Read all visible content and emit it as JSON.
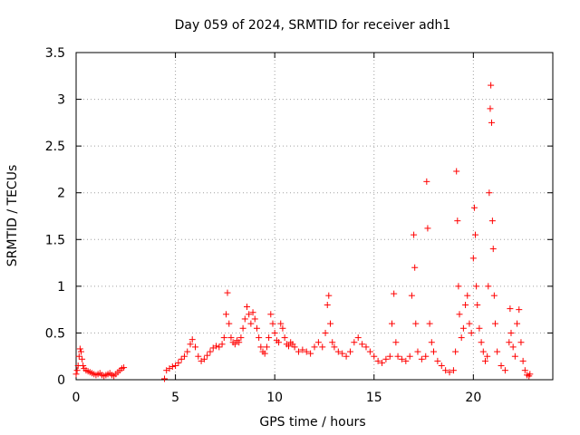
{
  "chart_data": {
    "type": "scatter",
    "title": "Day 059 of 2024, SRMTID for receiver adh1",
    "xlabel": "GPS time / hours",
    "ylabel": "SRMTID / TECUs",
    "xlim": [
      0,
      24
    ],
    "ylim": [
      0,
      3.5
    ],
    "x_ticks": [
      0,
      5,
      10,
      15,
      20
    ],
    "x_tick_labels": [
      "0",
      "5",
      "10",
      "15",
      "20"
    ],
    "y_ticks": [
      0,
      0.5,
      1,
      1.5,
      2,
      2.5,
      3,
      3.5
    ],
    "y_tick_labels": [
      "0",
      "0.5",
      "1",
      "1.5",
      "2",
      "2.5",
      "3",
      "3.5"
    ],
    "grid": true,
    "marker": "plus",
    "color": "#ff0000",
    "series": [
      {
        "name": "SRMTID",
        "points": [
          [
            0.0,
            0.06
          ],
          [
            0.05,
            0.1
          ],
          [
            0.1,
            0.15
          ],
          [
            0.15,
            0.25
          ],
          [
            0.2,
            0.33
          ],
          [
            0.25,
            0.3
          ],
          [
            0.3,
            0.22
          ],
          [
            0.35,
            0.15
          ],
          [
            0.4,
            0.12
          ],
          [
            0.5,
            0.1
          ],
          [
            0.6,
            0.09
          ],
          [
            0.7,
            0.08
          ],
          [
            0.8,
            0.07
          ],
          [
            0.9,
            0.06
          ],
          [
            1.0,
            0.05
          ],
          [
            1.1,
            0.06
          ],
          [
            1.2,
            0.07
          ],
          [
            1.3,
            0.05
          ],
          [
            1.4,
            0.04
          ],
          [
            1.5,
            0.05
          ],
          [
            1.6,
            0.06
          ],
          [
            1.7,
            0.07
          ],
          [
            1.8,
            0.05
          ],
          [
            1.9,
            0.04
          ],
          [
            2.0,
            0.06
          ],
          [
            2.1,
            0.08
          ],
          [
            2.2,
            0.1
          ],
          [
            2.3,
            0.12
          ],
          [
            2.4,
            0.13
          ],
          [
            4.45,
            0.01
          ],
          [
            4.55,
            0.1
          ],
          [
            4.7,
            0.12
          ],
          [
            4.85,
            0.14
          ],
          [
            5.0,
            0.15
          ],
          [
            5.15,
            0.18
          ],
          [
            5.3,
            0.22
          ],
          [
            5.45,
            0.25
          ],
          [
            5.6,
            0.3
          ],
          [
            5.75,
            0.38
          ],
          [
            5.85,
            0.43
          ],
          [
            6.0,
            0.35
          ],
          [
            6.15,
            0.25
          ],
          [
            6.3,
            0.2
          ],
          [
            6.45,
            0.22
          ],
          [
            6.6,
            0.26
          ],
          [
            6.75,
            0.3
          ],
          [
            6.9,
            0.34
          ],
          [
            7.05,
            0.36
          ],
          [
            7.2,
            0.35
          ],
          [
            7.35,
            0.38
          ],
          [
            7.45,
            0.45
          ],
          [
            7.55,
            0.7
          ],
          [
            7.62,
            0.93
          ],
          [
            7.7,
            0.6
          ],
          [
            7.8,
            0.45
          ],
          [
            7.9,
            0.4
          ],
          [
            8.0,
            0.38
          ],
          [
            8.1,
            0.42
          ],
          [
            8.2,
            0.4
          ],
          [
            8.3,
            0.45
          ],
          [
            8.4,
            0.55
          ],
          [
            8.5,
            0.65
          ],
          [
            8.6,
            0.78
          ],
          [
            8.7,
            0.7
          ],
          [
            8.8,
            0.6
          ],
          [
            8.9,
            0.72
          ],
          [
            9.0,
            0.65
          ],
          [
            9.1,
            0.55
          ],
          [
            9.2,
            0.45
          ],
          [
            9.3,
            0.35
          ],
          [
            9.4,
            0.3
          ],
          [
            9.5,
            0.28
          ],
          [
            9.6,
            0.35
          ],
          [
            9.7,
            0.45
          ],
          [
            9.8,
            0.7
          ],
          [
            9.9,
            0.6
          ],
          [
            10.0,
            0.5
          ],
          [
            10.1,
            0.42
          ],
          [
            10.2,
            0.4
          ],
          [
            10.3,
            0.6
          ],
          [
            10.4,
            0.55
          ],
          [
            10.5,
            0.45
          ],
          [
            10.6,
            0.38
          ],
          [
            10.7,
            0.36
          ],
          [
            10.8,
            0.4
          ],
          [
            10.9,
            0.38
          ],
          [
            11.0,
            0.35
          ],
          [
            11.2,
            0.3
          ],
          [
            11.4,
            0.32
          ],
          [
            11.6,
            0.3
          ],
          [
            11.8,
            0.28
          ],
          [
            12.0,
            0.35
          ],
          [
            12.2,
            0.4
          ],
          [
            12.4,
            0.35
          ],
          [
            12.55,
            0.5
          ],
          [
            12.65,
            0.8
          ],
          [
            12.72,
            0.9
          ],
          [
            12.8,
            0.6
          ],
          [
            12.9,
            0.4
          ],
          [
            13.0,
            0.35
          ],
          [
            13.2,
            0.3
          ],
          [
            13.4,
            0.28
          ],
          [
            13.6,
            0.25
          ],
          [
            13.8,
            0.3
          ],
          [
            14.0,
            0.4
          ],
          [
            14.2,
            0.45
          ],
          [
            14.4,
            0.38
          ],
          [
            14.6,
            0.35
          ],
          [
            14.8,
            0.3
          ],
          [
            15.0,
            0.25
          ],
          [
            15.2,
            0.2
          ],
          [
            15.4,
            0.18
          ],
          [
            15.6,
            0.22
          ],
          [
            15.8,
            0.25
          ],
          [
            15.9,
            0.6
          ],
          [
            16.0,
            0.92
          ],
          [
            16.1,
            0.4
          ],
          [
            16.2,
            0.25
          ],
          [
            16.4,
            0.22
          ],
          [
            16.6,
            0.2
          ],
          [
            16.8,
            0.25
          ],
          [
            16.9,
            0.9
          ],
          [
            17.0,
            1.55
          ],
          [
            17.05,
            1.2
          ],
          [
            17.1,
            0.6
          ],
          [
            17.2,
            0.3
          ],
          [
            17.4,
            0.22
          ],
          [
            17.6,
            0.25
          ],
          [
            17.65,
            2.12
          ],
          [
            17.7,
            1.62
          ],
          [
            17.8,
            0.6
          ],
          [
            17.9,
            0.4
          ],
          [
            18.0,
            0.3
          ],
          [
            18.2,
            0.2
          ],
          [
            18.4,
            0.15
          ],
          [
            18.6,
            0.1
          ],
          [
            18.8,
            0.08
          ],
          [
            19.0,
            0.1
          ],
          [
            19.1,
            0.3
          ],
          [
            19.15,
            2.23
          ],
          [
            19.2,
            1.7
          ],
          [
            19.25,
            1.0
          ],
          [
            19.3,
            0.7
          ],
          [
            19.4,
            0.45
          ],
          [
            19.5,
            0.55
          ],
          [
            19.6,
            0.8
          ],
          [
            19.7,
            0.9
          ],
          [
            19.8,
            0.6
          ],
          [
            19.9,
            0.5
          ],
          [
            20.0,
            1.3
          ],
          [
            20.05,
            1.84
          ],
          [
            20.1,
            1.55
          ],
          [
            20.15,
            1.0
          ],
          [
            20.2,
            0.8
          ],
          [
            20.3,
            0.55
          ],
          [
            20.4,
            0.4
          ],
          [
            20.5,
            0.3
          ],
          [
            20.6,
            0.2
          ],
          [
            20.7,
            0.25
          ],
          [
            20.75,
            1.0
          ],
          [
            20.8,
            2.0
          ],
          [
            20.85,
            2.9
          ],
          [
            20.88,
            3.15
          ],
          [
            20.92,
            2.75
          ],
          [
            20.96,
            1.7
          ],
          [
            21.0,
            1.4
          ],
          [
            21.05,
            0.9
          ],
          [
            21.1,
            0.6
          ],
          [
            21.2,
            0.3
          ],
          [
            21.4,
            0.15
          ],
          [
            21.6,
            0.1
          ],
          [
            21.8,
            0.4
          ],
          [
            21.85,
            0.76
          ],
          [
            21.9,
            0.5
          ],
          [
            22.0,
            0.35
          ],
          [
            22.1,
            0.25
          ],
          [
            22.2,
            0.6
          ],
          [
            22.3,
            0.75
          ],
          [
            22.4,
            0.4
          ],
          [
            22.5,
            0.2
          ],
          [
            22.6,
            0.1
          ],
          [
            22.7,
            0.05
          ],
          [
            22.8,
            0.04
          ],
          [
            22.85,
            0.06
          ]
        ]
      }
    ]
  }
}
